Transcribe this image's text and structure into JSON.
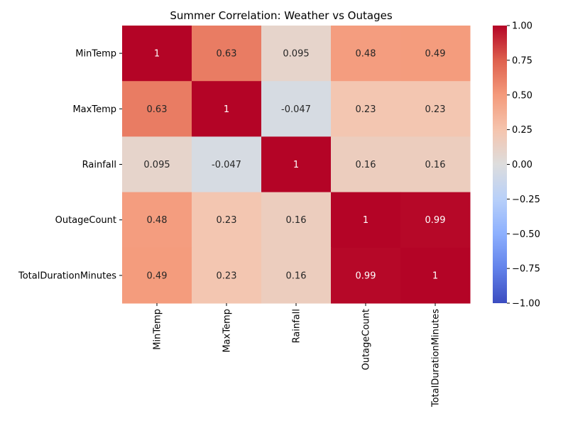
{
  "chart_data": {
    "type": "heatmap",
    "title": "Summer Correlation: Weather vs Outages",
    "rows": [
      "MinTemp",
      "MaxTemp",
      "Rainfall",
      "OutageCount",
      "TotalDurationMinutes"
    ],
    "columns": [
      "MinTemp",
      "MaxTemp",
      "Rainfall",
      "OutageCount",
      "TotalDurationMinutes"
    ],
    "values": [
      [
        1,
        0.63,
        0.095,
        0.48,
        0.49
      ],
      [
        0.63,
        1,
        -0.047,
        0.23,
        0.23
      ],
      [
        0.095,
        -0.047,
        1,
        0.16,
        0.16
      ],
      [
        0.48,
        0.23,
        0.16,
        1,
        0.99
      ],
      [
        0.49,
        0.23,
        0.16,
        0.99,
        1
      ]
    ],
    "cell_labels": [
      [
        "1",
        "0.63",
        "0.095",
        "0.48",
        "0.49"
      ],
      [
        "0.63",
        "1",
        "-0.047",
        "0.23",
        "0.23"
      ],
      [
        "0.095",
        "-0.047",
        "1",
        "0.16",
        "0.16"
      ],
      [
        "0.48",
        "0.23",
        "0.16",
        "1",
        "0.99"
      ],
      [
        "0.49",
        "0.23",
        "0.16",
        "0.99",
        "1"
      ]
    ],
    "colormap": "coolwarm",
    "colorbar": {
      "range": [
        -1,
        1
      ],
      "ticks": [
        1.0,
        0.75,
        0.5,
        0.25,
        0.0,
        -0.25,
        -0.5,
        -0.75,
        -1.0
      ],
      "tick_labels": [
        "1.00",
        "0.75",
        "0.50",
        "0.25",
        "0.00",
        "−0.25",
        "−0.50",
        "−0.75",
        "−1.00"
      ]
    },
    "xlabel": "",
    "ylabel": ""
  }
}
